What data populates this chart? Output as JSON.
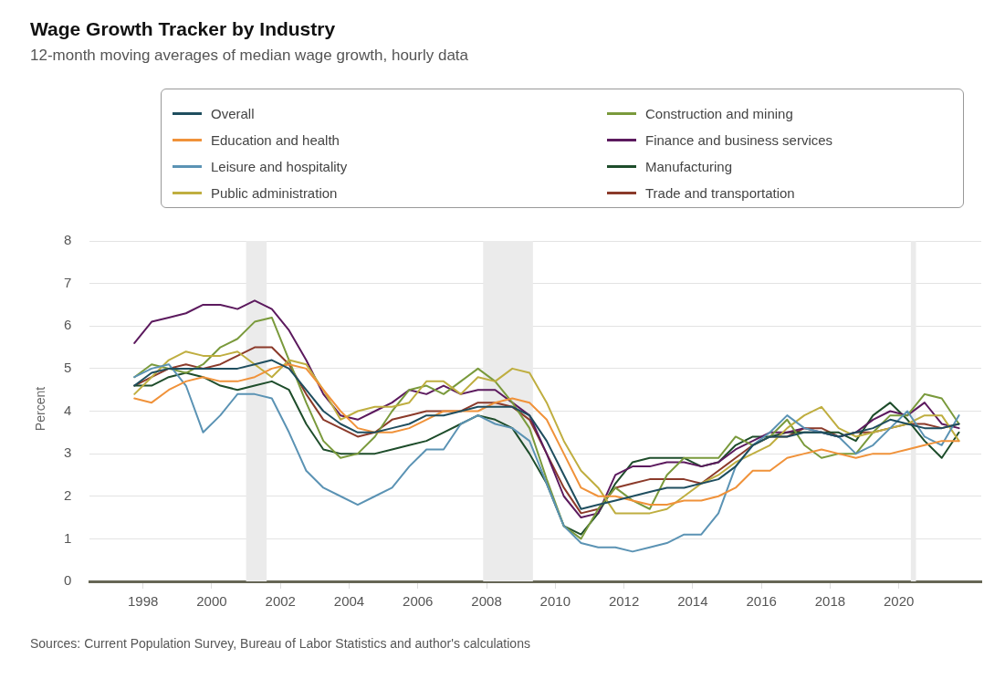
{
  "chart_data": {
    "type": "line",
    "title": "Wage Growth Tracker by Industry",
    "subtitle": "12-month moving averages of median wage growth, hourly data",
    "ylabel": "Percent",
    "annotations": [
      "Sources: Current Population Survey, Bureau of Labor Statistics and author's calculations"
    ],
    "x": [
      1997.75,
      1998.25,
      1998.75,
      1999.25,
      1999.75,
      2000.25,
      2000.75,
      2001.25,
      2001.75,
      2002.25,
      2002.75,
      2003.25,
      2003.75,
      2004.25,
      2004.75,
      2005.25,
      2005.75,
      2006.25,
      2006.75,
      2007.25,
      2007.75,
      2008.25,
      2008.75,
      2009.25,
      2009.75,
      2010.25,
      2010.75,
      2011.25,
      2011.75,
      2012.25,
      2012.75,
      2013.25,
      2013.75,
      2014.25,
      2014.75,
      2015.25,
      2015.75,
      2016.25,
      2016.75,
      2017.25,
      2017.75,
      2018.25,
      2018.75,
      2019.25,
      2019.75,
      2020.25,
      2020.75,
      2021.25,
      2021.75
    ],
    "series": [
      {
        "name": "Overall",
        "color": "#1f4e5f",
        "values": [
          4.6,
          4.9,
          5.0,
          5.0,
          5.0,
          5.0,
          5.0,
          5.1,
          5.2,
          5.0,
          4.5,
          4.0,
          3.7,
          3.5,
          3.5,
          3.6,
          3.7,
          3.9,
          3.9,
          4.0,
          4.1,
          4.1,
          4.1,
          3.9,
          3.3,
          2.5,
          1.7,
          1.8,
          1.9,
          2.0,
          2.1,
          2.2,
          2.2,
          2.3,
          2.4,
          2.7,
          3.2,
          3.4,
          3.4,
          3.5,
          3.5,
          3.4,
          3.5,
          3.6,
          3.8,
          3.7,
          3.6,
          3.6,
          3.7
        ]
      },
      {
        "name": "Education and health",
        "color": "#f0923a",
        "values": [
          4.3,
          4.2,
          4.5,
          4.7,
          4.8,
          4.7,
          4.7,
          4.8,
          5.0,
          5.1,
          5.0,
          4.5,
          4.0,
          3.6,
          3.5,
          3.5,
          3.6,
          3.8,
          4.0,
          4.0,
          4.0,
          4.2,
          4.3,
          4.2,
          3.8,
          3.0,
          2.2,
          2.0,
          2.0,
          1.9,
          1.8,
          1.8,
          1.9,
          1.9,
          2.0,
          2.2,
          2.6,
          2.6,
          2.9,
          3.0,
          3.1,
          3.0,
          2.9,
          3.0,
          3.0,
          3.1,
          3.2,
          3.3,
          3.3
        ]
      },
      {
        "name": "Leisure and hospitality",
        "color": "#5b93b4",
        "values": [
          4.8,
          5.0,
          5.1,
          4.6,
          3.5,
          3.9,
          4.4,
          4.4,
          4.3,
          3.5,
          2.6,
          2.2,
          2.0,
          1.8,
          2.0,
          2.2,
          2.7,
          3.1,
          3.1,
          3.7,
          3.9,
          3.7,
          3.6,
          3.3,
          2.3,
          1.3,
          0.9,
          0.8,
          0.8,
          0.7,
          0.8,
          0.9,
          1.1,
          1.1,
          1.6,
          2.7,
          3.2,
          3.5,
          3.9,
          3.6,
          3.5,
          3.4,
          3.0,
          3.2,
          3.6,
          4.0,
          3.4,
          3.2,
          3.9
        ]
      },
      {
        "name": "Public administration",
        "color": "#bfae40",
        "values": [
          4.4,
          4.8,
          5.2,
          5.4,
          5.3,
          5.3,
          5.4,
          5.1,
          4.8,
          5.2,
          5.1,
          4.5,
          3.8,
          4.0,
          4.1,
          4.1,
          4.2,
          4.7,
          4.7,
          4.4,
          4.8,
          4.7,
          5.0,
          4.9,
          4.2,
          3.3,
          2.6,
          2.2,
          1.6,
          1.6,
          1.6,
          1.7,
          2.0,
          2.3,
          2.5,
          2.8,
          3.0,
          3.2,
          3.6,
          3.9,
          4.1,
          3.6,
          3.4,
          3.5,
          3.6,
          3.7,
          3.9,
          3.9,
          3.3
        ]
      },
      {
        "name": "Construction and mining",
        "color": "#7a9a3c",
        "values": [
          4.8,
          5.1,
          5.0,
          4.9,
          5.1,
          5.5,
          5.7,
          6.1,
          6.2,
          5.2,
          4.2,
          3.3,
          2.9,
          3.0,
          3.4,
          4.0,
          4.5,
          4.6,
          4.4,
          4.7,
          5.0,
          4.7,
          4.2,
          3.6,
          2.4,
          1.3,
          1.0,
          1.7,
          2.2,
          1.9,
          1.7,
          2.5,
          2.9,
          2.9,
          2.9,
          3.4,
          3.2,
          3.4,
          3.8,
          3.2,
          2.9,
          3.0,
          3.0,
          3.5,
          3.9,
          3.9,
          4.4,
          4.3,
          3.7
        ]
      },
      {
        "name": "Finance and business services",
        "color": "#5c1a5e",
        "values": [
          5.6,
          6.1,
          6.2,
          6.3,
          6.5,
          6.5,
          6.4,
          6.6,
          6.4,
          5.9,
          5.2,
          4.4,
          3.9,
          3.8,
          4.0,
          4.2,
          4.5,
          4.4,
          4.6,
          4.4,
          4.5,
          4.5,
          4.2,
          3.9,
          3.0,
          2.0,
          1.5,
          1.6,
          2.5,
          2.7,
          2.7,
          2.8,
          2.8,
          2.7,
          2.8,
          3.1,
          3.3,
          3.5,
          3.5,
          3.6,
          3.5,
          3.4,
          3.5,
          3.8,
          4.0,
          3.9,
          4.2,
          3.7,
          3.6
        ]
      },
      {
        "name": "Manufacturing",
        "color": "#1e4d2b",
        "values": [
          4.6,
          4.6,
          4.8,
          4.9,
          4.8,
          4.6,
          4.5,
          4.6,
          4.7,
          4.5,
          3.7,
          3.1,
          3.0,
          3.0,
          3.0,
          3.1,
          3.2,
          3.3,
          3.5,
          3.7,
          3.9,
          3.8,
          3.6,
          3.0,
          2.3,
          1.3,
          1.1,
          1.6,
          2.3,
          2.8,
          2.9,
          2.9,
          2.9,
          2.7,
          2.8,
          3.2,
          3.4,
          3.4,
          3.5,
          3.5,
          3.5,
          3.5,
          3.3,
          3.9,
          4.2,
          3.8,
          3.3,
          2.9,
          3.5
        ]
      },
      {
        "name": "Trade and transportation",
        "color": "#8b3a2a",
        "values": [
          4.6,
          4.8,
          5.0,
          5.1,
          5.0,
          5.1,
          5.3,
          5.5,
          5.5,
          5.1,
          4.4,
          3.8,
          3.6,
          3.4,
          3.5,
          3.8,
          3.9,
          4.0,
          4.0,
          4.0,
          4.2,
          4.2,
          4.1,
          3.8,
          3.0,
          2.2,
          1.6,
          1.7,
          2.2,
          2.3,
          2.4,
          2.4,
          2.4,
          2.3,
          2.6,
          2.9,
          3.2,
          3.4,
          3.4,
          3.6,
          3.6,
          3.4,
          3.5,
          3.5,
          3.6,
          3.7,
          3.7,
          3.6,
          3.7
        ]
      }
    ],
    "bands": [
      {
        "axis": "x",
        "from": 2001.0,
        "to": 2001.6,
        "color": "#ebebeb"
      },
      {
        "axis": "x",
        "from": 2007.9,
        "to": 2009.35,
        "color": "#ebebeb"
      },
      {
        "axis": "x",
        "from": 2020.35,
        "to": 2020.5,
        "color": "#ebebeb"
      }
    ],
    "xlim": [
      1996.45,
      2022.4
    ],
    "xticks": [
      1998,
      2000,
      2002,
      2004,
      2006,
      2008,
      2010,
      2012,
      2014,
      2016,
      2018,
      2020
    ],
    "ylim": [
      0,
      8
    ],
    "yticks": [
      0,
      1,
      2,
      3,
      4,
      5,
      6,
      7,
      8
    ],
    "grid": "y",
    "legend": "top",
    "marker": "none",
    "line_style": "solid"
  }
}
